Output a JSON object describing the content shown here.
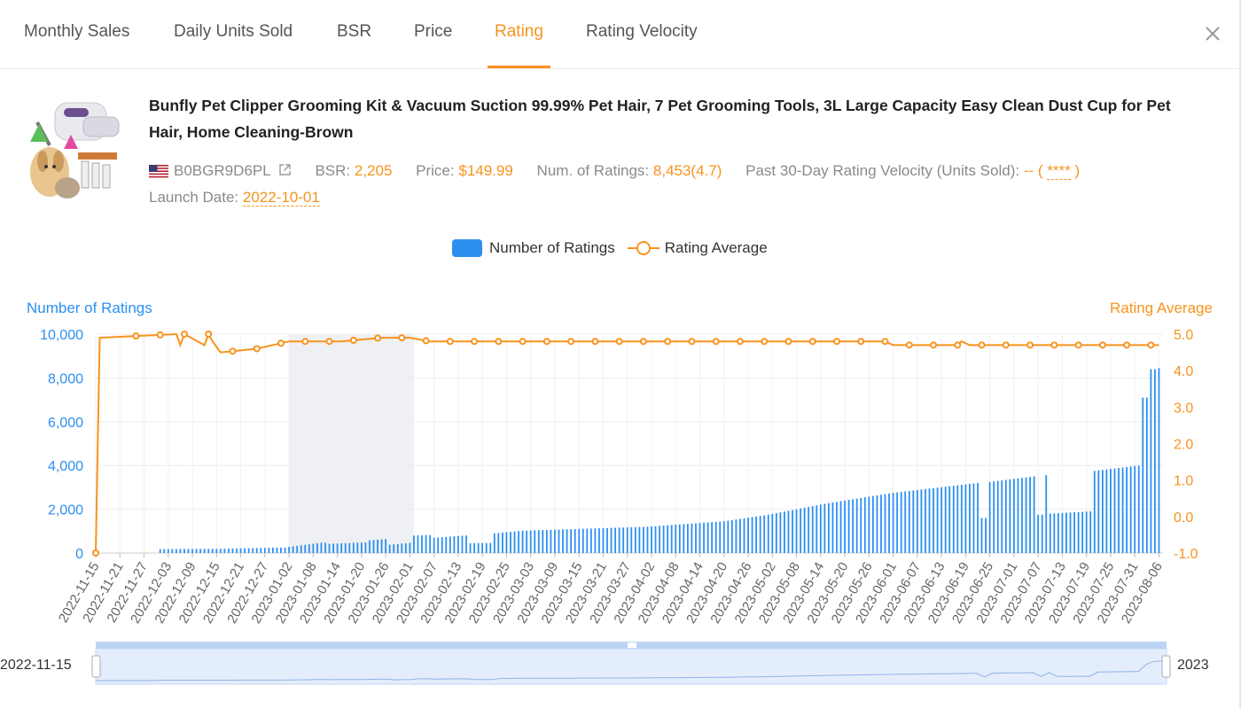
{
  "tabs": [
    {
      "label": "Monthly Sales",
      "active": false
    },
    {
      "label": "Daily Units Sold",
      "active": false
    },
    {
      "label": "BSR",
      "active": false
    },
    {
      "label": "Price",
      "active": false
    },
    {
      "label": "Rating",
      "active": true
    },
    {
      "label": "Rating Velocity",
      "active": false
    }
  ],
  "product": {
    "title": "Bunfly Pet Clipper Grooming Kit & Vacuum Suction 99.99% Pet Hair, 7 Pet Grooming Tools, 3L Large Capacity Easy Clean Dust Cup for Pet Hair, Home Cleaning-Brown",
    "asin": "B0BGR9D6PL",
    "bsr_label": "BSR:",
    "bsr_value": "2,205",
    "price_label": "Price:",
    "price_value": "$149.99",
    "ratings_label": "Num. of Ratings:",
    "ratings_value": "8,453(4.7)",
    "velocity_label": "Past 30-Day Rating Velocity (Units Sold):",
    "velocity_value": "--",
    "velocity_paren_open": "(",
    "velocity_masked": "****",
    "velocity_paren_close": ")",
    "launch_label": "Launch Date:",
    "launch_value": "2022-10-01"
  },
  "colors": {
    "accent_orange": "#f7931e",
    "bar_blue": "#2b8ff0",
    "highlight_band": "#eef0f4"
  },
  "icons": {
    "flag": "us-flag-icon",
    "share": "external-link-icon",
    "close": "close-icon"
  },
  "chart_data": {
    "type": "bar",
    "title": "",
    "legend": [
      {
        "name": "Number of Ratings",
        "type": "bar"
      },
      {
        "name": "Rating Average",
        "type": "line"
      }
    ],
    "legend_position": "top-center",
    "y_left": {
      "label": "Number of Ratings",
      "min": 0,
      "max": 10000,
      "ticks": [
        "0",
        "2,000",
        "4,000",
        "6,000",
        "8,000",
        "10,000"
      ]
    },
    "y_right": {
      "label": "Rating Average",
      "min": -1,
      "max": 5,
      "ticks": [
        "-1.0",
        "0.0",
        "1.0",
        "2.0",
        "3.0",
        "4.0",
        "5.0"
      ]
    },
    "x_tick_labels": [
      "2022-11-15",
      "2022-11-21",
      "2022-11-27",
      "2022-12-03",
      "2022-12-09",
      "2022-12-15",
      "2022-12-21",
      "2022-12-27",
      "2023-01-02",
      "2023-01-08",
      "2023-01-14",
      "2023-01-20",
      "2023-01-26",
      "2023-02-01",
      "2023-02-07",
      "2023-02-13",
      "2023-02-19",
      "2023-02-25",
      "2023-03-03",
      "2023-03-09",
      "2023-03-15",
      "2023-03-21",
      "2023-03-27",
      "2023-04-02",
      "2023-04-08",
      "2023-04-14",
      "2023-04-20",
      "2023-04-26",
      "2023-05-02",
      "2023-05-08",
      "2023-05-14",
      "2023-05-20",
      "2023-05-26",
      "2023-06-01",
      "2023-06-07",
      "2023-06-13",
      "2023-06-19",
      "2023-06-25",
      "2023-07-01",
      "2023-07-07",
      "2023-07-13",
      "2023-07-19",
      "2023-07-25",
      "2023-07-31",
      "2023-08-06"
    ],
    "x_start": "2022-11-15",
    "x_end": "2023-08-07",
    "highlight_range": [
      "2023-01-02",
      "2023-02-02"
    ],
    "grid": true,
    "series": [
      {
        "name": "Number of Ratings",
        "axis": "left",
        "anchors": [
          [
            "2022-11-15",
            0
          ],
          [
            "2022-11-30",
            0
          ],
          [
            "2022-12-01",
            180
          ],
          [
            "2022-12-15",
            190
          ],
          [
            "2022-12-31",
            250
          ],
          [
            "2023-01-02",
            280
          ],
          [
            "2023-01-10",
            470
          ],
          [
            "2023-01-12",
            420
          ],
          [
            "2023-01-20",
            480
          ],
          [
            "2023-01-22",
            580
          ],
          [
            "2023-01-26",
            640
          ],
          [
            "2023-01-27",
            380
          ],
          [
            "2023-02-01",
            460
          ],
          [
            "2023-02-02",
            800
          ],
          [
            "2023-02-06",
            820
          ],
          [
            "2023-02-07",
            700
          ],
          [
            "2023-02-15",
            800
          ],
          [
            "2023-02-16",
            450
          ],
          [
            "2023-02-21",
            460
          ],
          [
            "2023-02-22",
            900
          ],
          [
            "2023-03-01",
            1020
          ],
          [
            "2023-04-01",
            1200
          ],
          [
            "2023-04-20",
            1450
          ],
          [
            "2023-05-01",
            1750
          ],
          [
            "2023-05-15",
            2250
          ],
          [
            "2023-06-01",
            2750
          ],
          [
            "2023-06-22",
            3200
          ],
          [
            "2023-06-23",
            1600
          ],
          [
            "2023-06-24",
            1600
          ],
          [
            "2023-06-25",
            3250
          ],
          [
            "2023-07-06",
            3500
          ],
          [
            "2023-07-07",
            1750
          ],
          [
            "2023-07-08",
            1750
          ],
          [
            "2023-07-09",
            3550
          ],
          [
            "2023-07-10",
            1800
          ],
          [
            "2023-07-20",
            1900
          ],
          [
            "2023-07-21",
            3750
          ],
          [
            "2023-08-01",
            4000
          ],
          [
            "2023-08-02",
            7100
          ],
          [
            "2023-08-04",
            8400
          ],
          [
            "2023-08-06",
            8450
          ]
        ]
      },
      {
        "name": "Rating Average",
        "axis": "right",
        "points": [
          [
            "2022-11-15",
            -1.0
          ],
          [
            "2022-11-16",
            4.9
          ],
          [
            "2022-12-05",
            5.0
          ],
          [
            "2022-12-06",
            4.7
          ],
          [
            "2022-12-07",
            5.0
          ],
          [
            "2022-12-12",
            4.7
          ],
          [
            "2022-12-13",
            5.0
          ],
          [
            "2022-12-14",
            4.8
          ],
          [
            "2022-12-16",
            4.5
          ],
          [
            "2022-12-25",
            4.6
          ],
          [
            "2023-01-02",
            4.8
          ],
          [
            "2023-01-15",
            4.8
          ],
          [
            "2023-01-25",
            4.9
          ],
          [
            "2023-02-01",
            4.9
          ],
          [
            "2023-02-06",
            4.8
          ],
          [
            "2023-05-30",
            4.8
          ],
          [
            "2023-06-01",
            4.7
          ],
          [
            "2023-06-17",
            4.7
          ],
          [
            "2023-06-18",
            4.8
          ],
          [
            "2023-06-20",
            4.7
          ],
          [
            "2023-08-06",
            4.7
          ]
        ]
      }
    ],
    "data_zoom": {
      "start_label": "2022-11-15",
      "end_label": "2023"
    }
  }
}
